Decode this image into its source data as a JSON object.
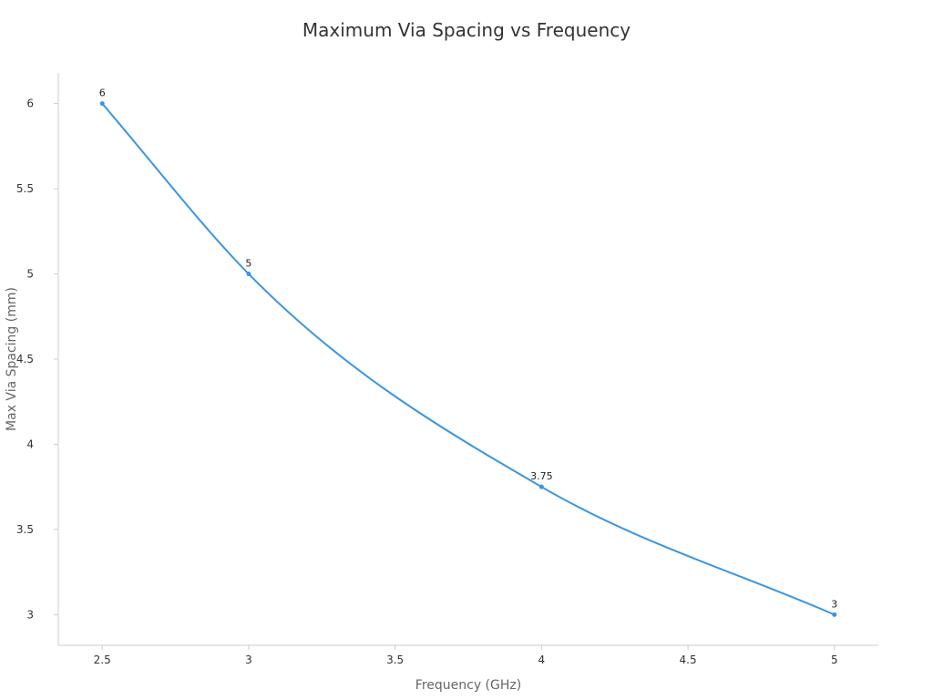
{
  "chart_data": {
    "type": "line",
    "title": "Maximum Via Spacing vs Frequency",
    "xlabel": "Frequency (GHz)",
    "ylabel": "Max Via Spacing (mm)",
    "xlim": [
      2.35,
      5.15
    ],
    "ylim": [
      2.82,
      6.18
    ],
    "x_ticks": [
      2.5,
      3,
      3.5,
      4,
      4.5,
      5
    ],
    "y_ticks": [
      3,
      3.5,
      4,
      4.5,
      5,
      5.5,
      6
    ],
    "grid": false,
    "legend": "none",
    "smooth": true,
    "series": [
      {
        "color": "#3a95e0",
        "points": [
          {
            "x": 2.5,
            "y": 6,
            "label": "6"
          },
          {
            "x": 3,
            "y": 5,
            "label": "5"
          },
          {
            "x": 4,
            "y": 3.75,
            "label": "3.75"
          },
          {
            "x": 5,
            "y": 3,
            "label": "3"
          }
        ]
      }
    ]
  }
}
